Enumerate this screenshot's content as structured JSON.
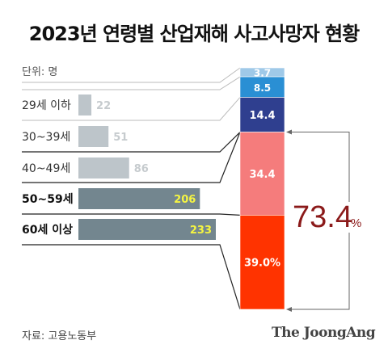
{
  "title": "2023년 연령별 산업재해 사고사망자 현황",
  "unit_label": "단위: 명",
  "source": "자료: 고용노동부",
  "brand": "The JoongAng",
  "chart_data": {
    "type": "bar",
    "orientation": "horizontal",
    "categories": [
      "29세 이하",
      "30~39세",
      "40~49세",
      "50~59세",
      "60세 이상"
    ],
    "values": [
      22,
      51,
      86,
      206,
      233
    ],
    "value_labels": [
      "22",
      "51",
      "86",
      "206",
      "233"
    ],
    "bold_categories": [
      "50~59세",
      "60세 이상"
    ],
    "stacked_share": {
      "type": "stacked_bar",
      "values": [
        3.7,
        8.5,
        14.4,
        34.4,
        39.0
      ],
      "labels": [
        "3.7",
        "8.5",
        "14.4",
        "34.4",
        "39.0%"
      ],
      "colors": [
        "#9fc9e8",
        "#2a8fd4",
        "#2f3f8f",
        "#f57c7c",
        "#ff3300"
      ]
    },
    "annotation": {
      "value": "73.4",
      "unit": "%",
      "color": "#8b1a1a"
    }
  }
}
